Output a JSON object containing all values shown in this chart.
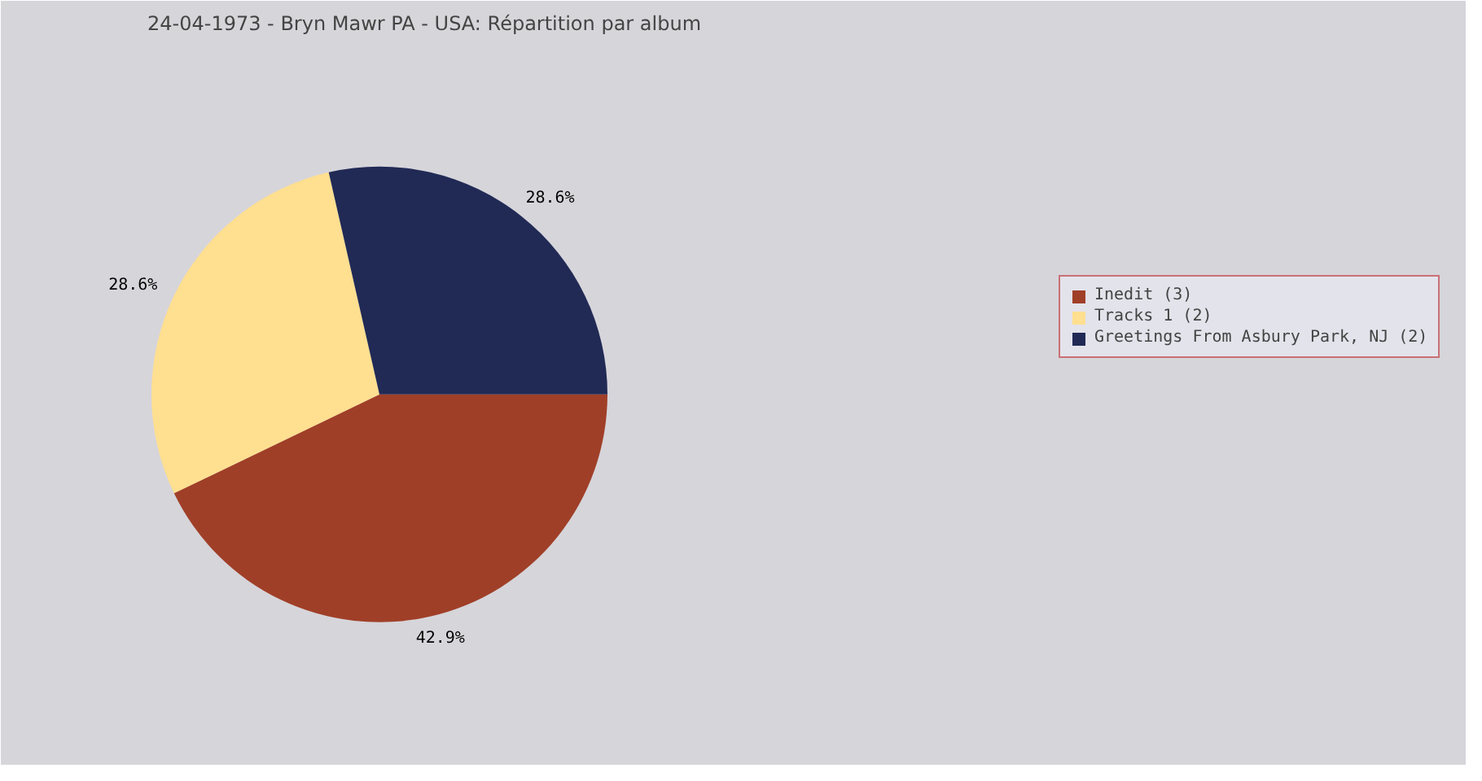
{
  "chart_data": {
    "type": "pie",
    "title": "24-04-1973 - Bryn Mawr PA - USA:  Répartition par album",
    "categories": [
      "Inedit (3)",
      "Tracks 1 (2)",
      "Greetings From Asbury Park, NJ (2)"
    ],
    "values": [
      42.9,
      28.6,
      28.6
    ],
    "colors": [
      "#a03f28",
      "#ffdf90",
      "#212a55"
    ],
    "data_labels": true,
    "value_labels": [
      "42.9%",
      "28.6%",
      "28.6%"
    ],
    "legend": "right"
  }
}
